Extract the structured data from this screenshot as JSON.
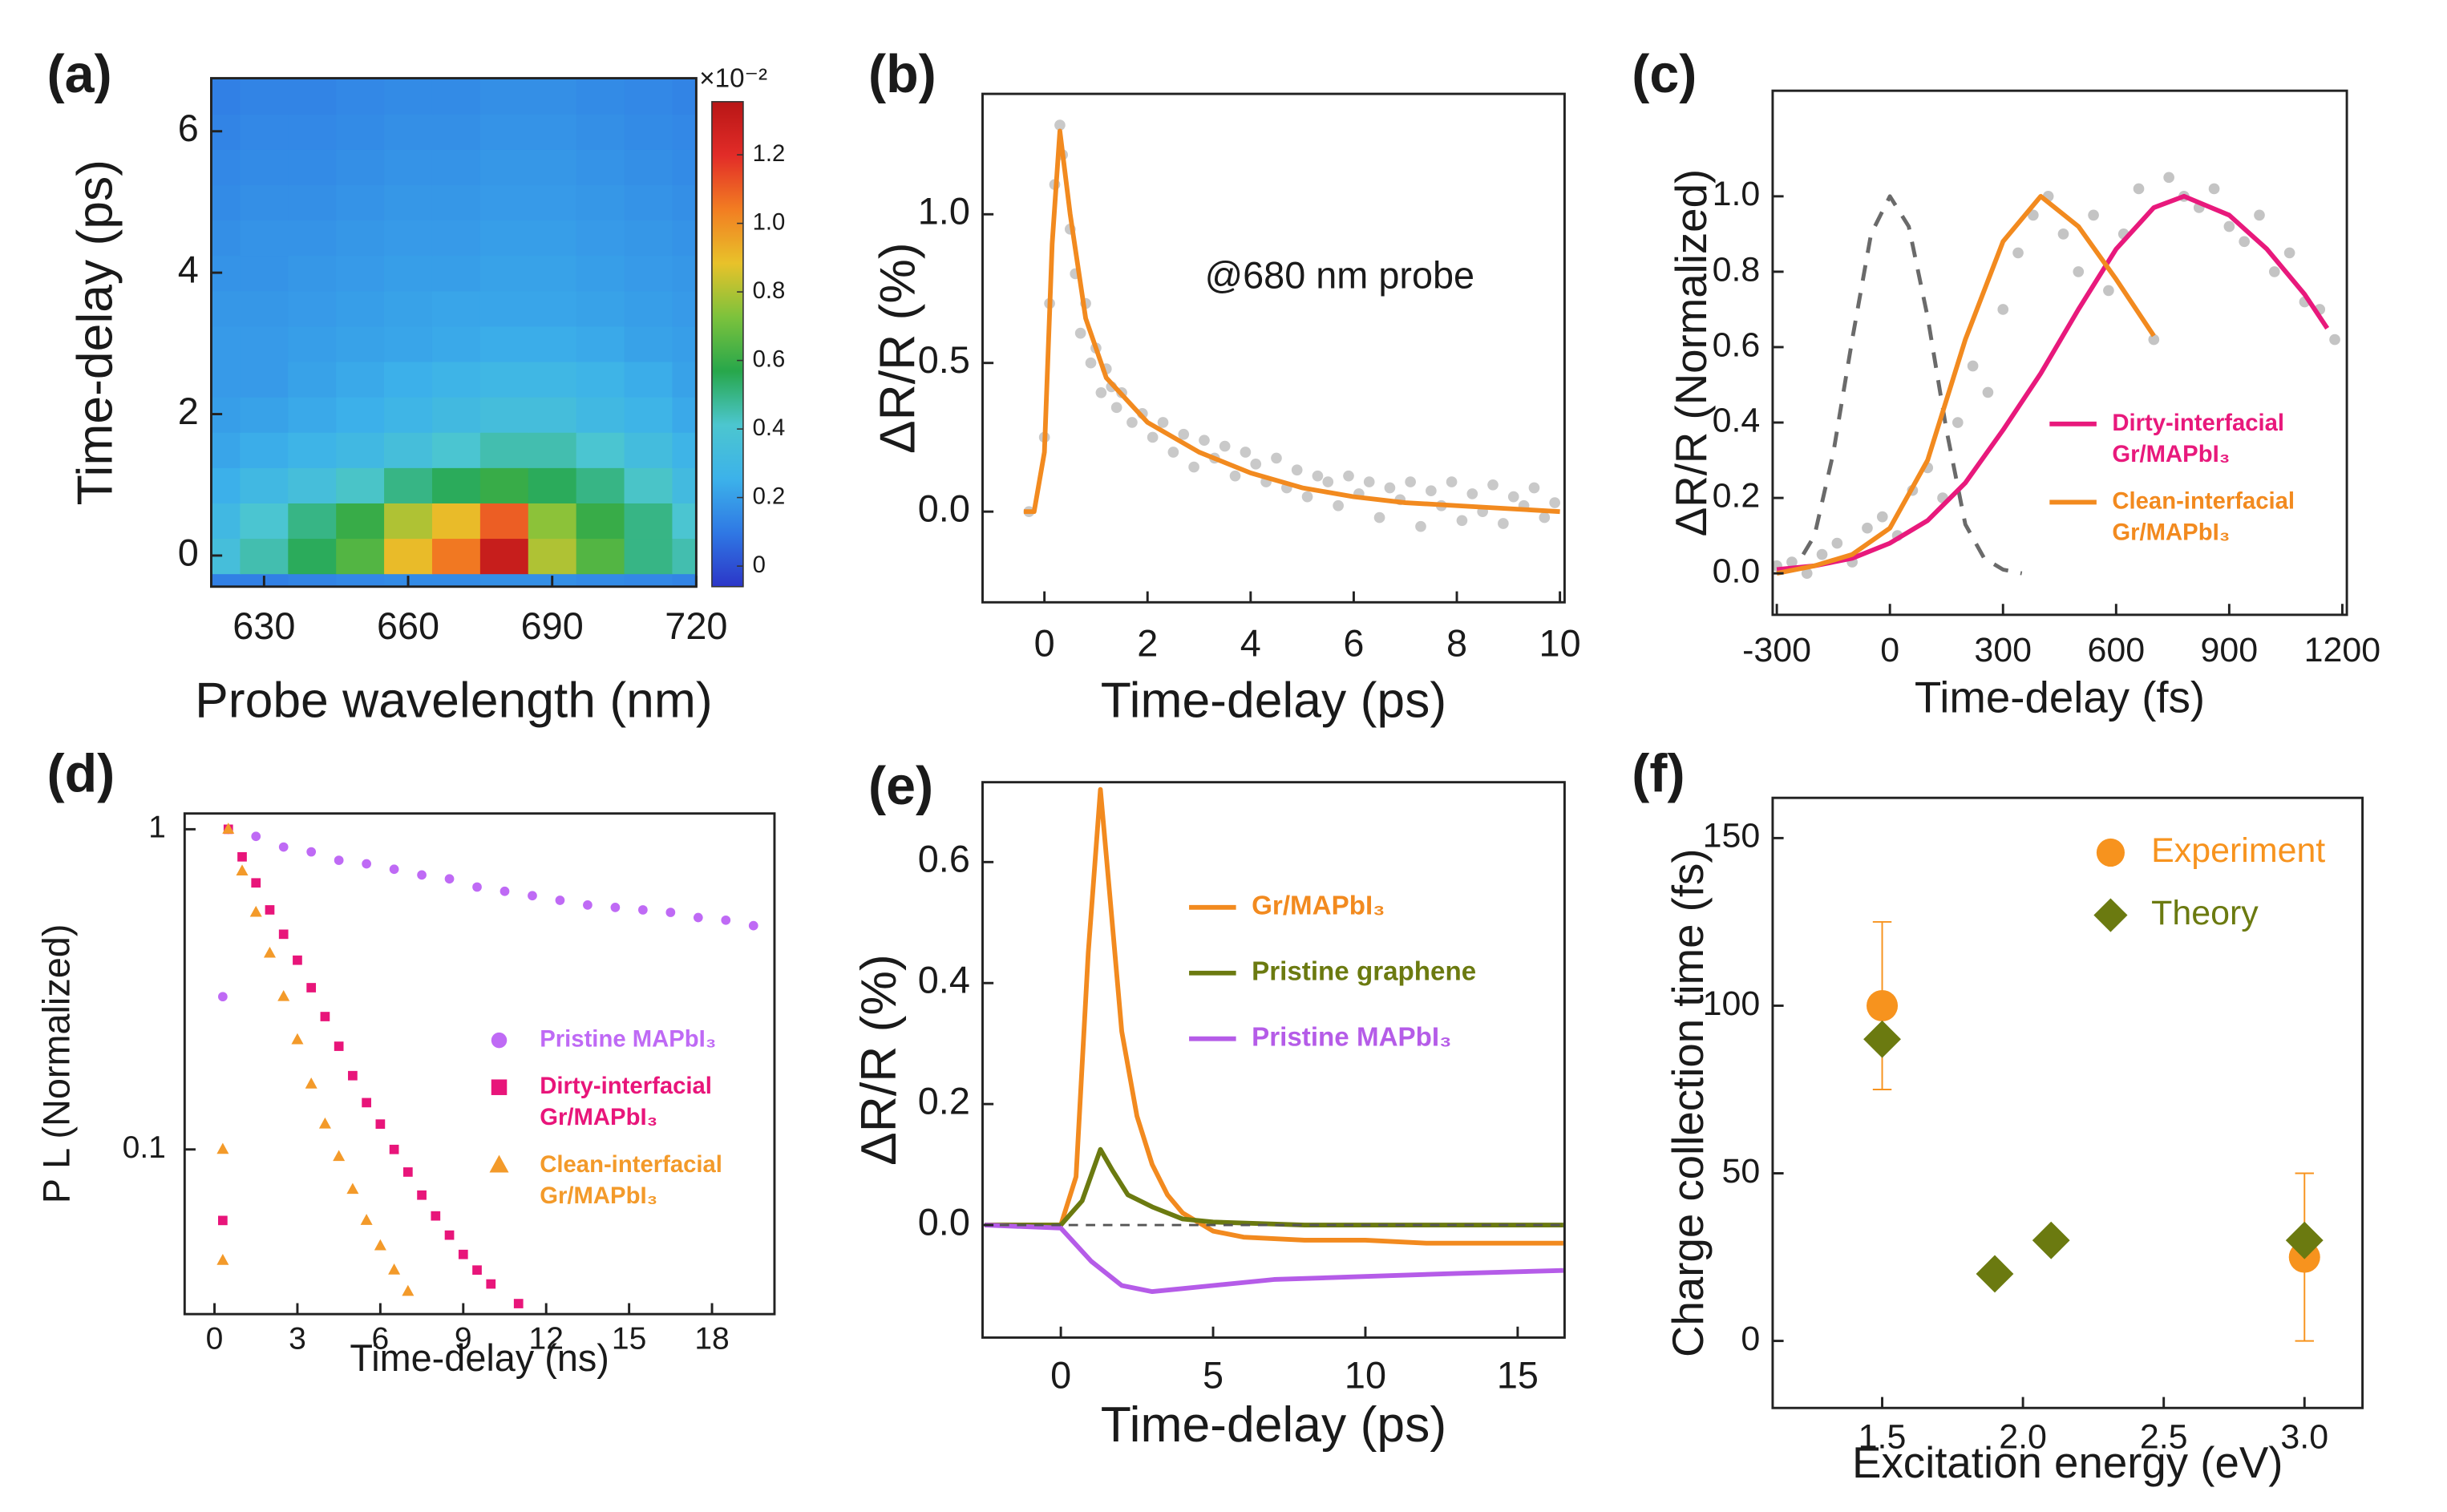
{
  "chart_data": [
    {
      "type": "heatmap",
      "label": "(a)",
      "xlabel": "Probe wavelength (nm)",
      "ylabel": "Time-delay (ps)",
      "xlim": [
        619,
        720
      ],
      "ylim": [
        -0.44,
        6.75
      ],
      "xticks": [
        630,
        660,
        690,
        720
      ],
      "yticks": [
        0,
        2,
        4,
        6
      ],
      "x": [
        620,
        630,
        640,
        650,
        660,
        670,
        680,
        690,
        700,
        710,
        720
      ],
      "y": [
        -0.5,
        0,
        0.5,
        1,
        1.5,
        2,
        2.5,
        3,
        3.5,
        4,
        4.5,
        5,
        5.5,
        6,
        6.5
      ],
      "z": [
        [
          0.12,
          0.12,
          0.13,
          0.14,
          0.15,
          0.15,
          0.16,
          0.16,
          0.15,
          0.14,
          0.13
        ],
        [
          0.35,
          0.45,
          0.55,
          0.65,
          0.9,
          1.05,
          1.3,
          0.8,
          0.65,
          0.5,
          0.45
        ],
        [
          0.3,
          0.4,
          0.5,
          0.6,
          0.8,
          0.9,
          1.1,
          0.75,
          0.6,
          0.5,
          0.4
        ],
        [
          0.25,
          0.3,
          0.35,
          0.42,
          0.5,
          0.55,
          0.6,
          0.55,
          0.5,
          0.42,
          0.32
        ],
        [
          0.22,
          0.24,
          0.27,
          0.3,
          0.35,
          0.4,
          0.45,
          0.45,
          0.4,
          0.33,
          0.27
        ],
        [
          0.2,
          0.21,
          0.23,
          0.25,
          0.28,
          0.31,
          0.34,
          0.34,
          0.3,
          0.27,
          0.23
        ],
        [
          0.19,
          0.19,
          0.21,
          0.23,
          0.25,
          0.27,
          0.29,
          0.29,
          0.27,
          0.24,
          0.21
        ],
        [
          0.19,
          0.19,
          0.2,
          0.21,
          0.22,
          0.23,
          0.24,
          0.24,
          0.23,
          0.21,
          0.2
        ],
        [
          0.18,
          0.18,
          0.19,
          0.2,
          0.21,
          0.22,
          0.22,
          0.22,
          0.21,
          0.2,
          0.19
        ],
        [
          0.17,
          0.17,
          0.18,
          0.19,
          0.2,
          0.2,
          0.21,
          0.21,
          0.2,
          0.19,
          0.18
        ],
        [
          0.16,
          0.17,
          0.17,
          0.18,
          0.19,
          0.19,
          0.2,
          0.2,
          0.19,
          0.18,
          0.17
        ],
        [
          0.15,
          0.16,
          0.16,
          0.17,
          0.18,
          0.18,
          0.19,
          0.19,
          0.18,
          0.17,
          0.16
        ],
        [
          0.14,
          0.15,
          0.15,
          0.16,
          0.17,
          0.17,
          0.18,
          0.18,
          0.17,
          0.16,
          0.15
        ],
        [
          0.13,
          0.14,
          0.14,
          0.15,
          0.16,
          0.16,
          0.17,
          0.17,
          0.16,
          0.15,
          0.14
        ],
        [
          0.12,
          0.13,
          0.13,
          0.14,
          0.15,
          0.15,
          0.16,
          0.16,
          0.15,
          0.14,
          0.13
        ]
      ],
      "colormap": [
        "#2c36c8",
        "#2f78e4",
        "#3cb2ea",
        "#4cc6cf",
        "#27a74b",
        "#7cc23c",
        "#e8c22a",
        "#f27d22",
        "#e22c28",
        "#b81616"
      ],
      "clim": [
        -0.06,
        1.355
      ],
      "cticks": [
        0,
        0.2,
        0.4,
        0.6,
        0.8,
        {
          "value": 1,
          "label": "1.0"
        },
        1.2
      ],
      "colorbar_label": "×10⁻²"
    },
    {
      "type": "line",
      "label": "(b)",
      "xlabel": "Time-delay (ps)",
      "ylabel": "ΔR/R (%)",
      "annotation": "@680 nm probe",
      "xlim": [
        -1.2,
        10.09
      ],
      "ylim": [
        -0.305,
        1.405
      ],
      "xticks": [
        0,
        2,
        4,
        6,
        8,
        10
      ],
      "yticks": [
        {
          "value": 0,
          "label": "0.0"
        },
        0.5,
        {
          "value": 1,
          "label": "1.0"
        }
      ],
      "series": [
        {
          "style": "points",
          "color": "#c9c9c9",
          "x": [
            -0.3,
            0.0,
            0.1,
            0.2,
            0.3,
            0.35,
            0.5,
            0.6,
            0.7,
            0.8,
            0.9,
            1.0,
            1.1,
            1.2,
            1.3,
            1.4,
            1.5,
            1.7,
            1.9,
            2.1,
            2.3,
            2.5,
            2.7,
            2.9,
            3.1,
            3.3,
            3.5,
            3.7,
            3.9,
            4.1,
            4.3,
            4.5,
            4.7,
            4.9,
            5.1,
            5.3,
            5.5,
            5.7,
            5.9,
            6.1,
            6.3,
            6.5,
            6.7,
            6.9,
            7.1,
            7.3,
            7.5,
            7.7,
            7.9,
            8.1,
            8.3,
            8.5,
            8.7,
            8.9,
            9.1,
            9.3,
            9.5,
            9.7,
            9.9
          ],
          "values": [
            0.0,
            0.25,
            0.7,
            1.1,
            1.3,
            1.2,
            0.95,
            0.8,
            0.6,
            0.7,
            0.5,
            0.55,
            0.4,
            0.48,
            0.42,
            0.35,
            0.4,
            0.3,
            0.33,
            0.25,
            0.3,
            0.2,
            0.26,
            0.15,
            0.24,
            0.18,
            0.22,
            0.12,
            0.2,
            0.16,
            0.1,
            0.18,
            0.08,
            0.14,
            0.05,
            0.12,
            0.1,
            0.02,
            0.12,
            0.06,
            0.1,
            -0.02,
            0.08,
            0.04,
            0.1,
            -0.05,
            0.07,
            0.02,
            0.1,
            -0.03,
            0.06,
            0.0,
            0.09,
            -0.04,
            0.05,
            0.02,
            0.08,
            -0.02,
            0.03
          ]
        },
        {
          "style": "line",
          "color": "#f28a1f",
          "x": [
            -0.4,
            -0.2,
            0,
            0.15,
            0.3,
            0.5,
            0.8,
            1.2,
            2,
            3,
            4,
            5,
            6,
            7,
            8,
            10
          ],
          "values": [
            0,
            0,
            0.2,
            0.9,
            1.28,
            1.0,
            0.65,
            0.45,
            0.3,
            0.2,
            0.13,
            0.08,
            0.05,
            0.03,
            0.02,
            0.0
          ]
        }
      ]
    },
    {
      "type": "line",
      "label": "(c)",
      "xlabel": "Time-delay (fs)",
      "ylabel": "ΔR/R (Normalized)",
      "legend": "lower right",
      "xlim": [
        -311,
        1212
      ],
      "ylim": [
        -0.11,
        1.28
      ],
      "xticks": [
        -300,
        0,
        300,
        600,
        900,
        1200
      ],
      "yticks": [
        {
          "value": 0,
          "label": "0.0"
        },
        0.2,
        0.4,
        0.6,
        0.8,
        {
          "value": 1,
          "label": "1.0"
        }
      ],
      "series": [
        {
          "style": "points",
          "color": "#c4c4c4",
          "x": [
            -300,
            -260,
            -220,
            -180,
            -140,
            -100,
            -60,
            -20,
            20,
            60,
            100,
            140,
            180,
            220,
            260,
            300,
            340,
            380,
            420,
            460,
            500,
            540,
            580,
            620,
            660,
            700,
            740,
            780,
            820,
            860,
            900,
            940,
            980,
            1020,
            1060,
            1100,
            1140,
            1180
          ],
          "values": [
            0.02,
            0.03,
            0.0,
            0.05,
            0.08,
            0.03,
            0.12,
            0.15,
            0.1,
            0.22,
            0.28,
            0.2,
            0.4,
            0.55,
            0.48,
            0.7,
            0.85,
            0.95,
            1.0,
            0.9,
            0.8,
            0.95,
            0.75,
            0.9,
            1.02,
            0.62,
            1.05,
            1.0,
            0.97,
            1.02,
            0.92,
            0.88,
            0.95,
            0.8,
            0.85,
            0.72,
            0.7,
            0.62
          ]
        },
        {
          "style": "dashed",
          "color": "#6a6a6a",
          "x": [
            -230,
            -200,
            -150,
            -100,
            -50,
            0,
            50,
            100,
            150,
            200,
            250,
            300,
            350
          ],
          "values": [
            0.05,
            0.1,
            0.32,
            0.62,
            0.9,
            1.0,
            0.92,
            0.68,
            0.38,
            0.13,
            0.04,
            0.01,
            0.0
          ]
        },
        {
          "name": "Dirty-interfacial\nGr/MAPbI₃",
          "style": "line",
          "color": "#e8197c",
          "x": [
            -300,
            -200,
            -100,
            0,
            100,
            200,
            300,
            400,
            500,
            600,
            700,
            780,
            900,
            1000,
            1100,
            1160
          ],
          "values": [
            0.01,
            0.02,
            0.04,
            0.08,
            0.14,
            0.24,
            0.38,
            0.53,
            0.7,
            0.86,
            0.97,
            1.0,
            0.95,
            0.86,
            0.74,
            0.65
          ]
        },
        {
          "name": "Clean-interfacial\nGr/MAPbI₃",
          "style": "line",
          "color": "#f28a1f",
          "x": [
            -300,
            -200,
            -100,
            0,
            100,
            200,
            300,
            400,
            500,
            600,
            700
          ],
          "values": [
            0,
            0.02,
            0.05,
            0.12,
            0.3,
            0.62,
            0.88,
            1.0,
            0.92,
            0.78,
            0.63
          ]
        }
      ]
    },
    {
      "type": "scatter",
      "label": "(d)",
      "xlabel": "Time-delay (ns)",
      "ylabel": "P L (Normalized)",
      "yscale": "log",
      "legend": "lower right",
      "xlim": [
        -1.08,
        20.26
      ],
      "ylim": [
        0.0306,
        1.12
      ],
      "xticks": [
        0,
        3,
        6,
        9,
        12,
        15,
        18
      ],
      "yticks": [
        1,
        0.1
      ],
      "series": [
        {
          "name": "Pristine MAPbI₃",
          "marker": "circle",
          "size": 3,
          "color": "#bf6af5",
          "x": [
            0.3,
            0.5,
            1.5,
            2.5,
            3.5,
            4.5,
            5.5,
            6.5,
            7.5,
            8.5,
            9.5,
            10.5,
            11.5,
            12.5,
            13.5,
            14.5,
            15.5,
            16.5,
            17.5,
            18.5,
            19.5
          ],
          "values": [
            0.3,
            1.0,
            0.95,
            0.88,
            0.85,
            0.8,
            0.78,
            0.75,
            0.72,
            0.7,
            0.66,
            0.64,
            0.62,
            0.6,
            0.58,
            0.57,
            0.56,
            0.55,
            0.53,
            0.52,
            0.5
          ]
        },
        {
          "name": "Dirty-interfacial\nGr/MAPbI₃",
          "marker": "square",
          "size": 3,
          "color": "#e8157a",
          "x": [
            0.3,
            0.5,
            1,
            1.5,
            2,
            2.5,
            3,
            3.5,
            4,
            4.5,
            5,
            5.5,
            6,
            6.5,
            7,
            7.5,
            8,
            8.5,
            9,
            9.5,
            10,
            11
          ],
          "values": [
            0.06,
            1,
            0.82,
            0.68,
            0.56,
            0.47,
            0.39,
            0.32,
            0.26,
            0.21,
            0.17,
            0.14,
            0.12,
            0.1,
            0.085,
            0.072,
            0.062,
            0.054,
            0.047,
            0.042,
            0.038,
            0.033
          ]
        },
        {
          "name": "Clean-interfacial\nGr/MAPbI₃",
          "marker": "triangle",
          "size": 3.5,
          "color": "#f39a2a",
          "x": [
            0.3,
            0.3,
            0.5,
            1,
            1.5,
            2,
            2.5,
            3,
            3.5,
            4,
            4.5,
            5,
            5.5,
            6,
            6.5,
            7
          ],
          "values": [
            0.1,
            0.045,
            1,
            0.74,
            0.55,
            0.41,
            0.3,
            0.22,
            0.16,
            0.12,
            0.095,
            0.075,
            0.06,
            0.05,
            0.042,
            0.036
          ]
        }
      ]
    },
    {
      "type": "line",
      "label": "(e)",
      "xlabel": "Time-delay (ps)",
      "ylabel": "ΔR/R (%)",
      "legend": "upper right",
      "zero_line": true,
      "xlim": [
        -2.57,
        16.54
      ],
      "ylim": [
        -0.186,
        0.732
      ],
      "xticks": [
        0,
        5,
        10,
        15
      ],
      "yticks": [
        {
          "value": 0,
          "label": "0.0"
        },
        0.2,
        0.4,
        0.6
      ],
      "series": [
        {
          "name": "Gr/MAPbI₃",
          "style": "line",
          "color": "#f28a1f",
          "x": [
            -2.5,
            0,
            0.5,
            0.9,
            1.3,
            1.6,
            2,
            2.5,
            3,
            3.5,
            4,
            5,
            6,
            8,
            10,
            12,
            14,
            16.5
          ],
          "values": [
            0,
            0,
            0.08,
            0.45,
            0.72,
            0.55,
            0.32,
            0.18,
            0.1,
            0.05,
            0.02,
            -0.01,
            -0.02,
            -0.025,
            -0.025,
            -0.03,
            -0.03,
            -0.03
          ]
        },
        {
          "name": "Pristine graphene",
          "style": "line",
          "color": "#6b7a10",
          "x": [
            -2.5,
            0,
            0.7,
            1.3,
            1.7,
            2.2,
            3,
            4,
            5,
            8,
            12,
            16.5
          ],
          "values": [
            0,
            0,
            0.04,
            0.125,
            0.09,
            0.05,
            0.03,
            0.01,
            0.005,
            0,
            0,
            0
          ]
        },
        {
          "name": "Pristine MAPbI₃",
          "style": "line",
          "color": "#b55ce8",
          "x": [
            -2.5,
            0,
            1,
            2,
            3,
            4,
            5,
            7,
            10,
            13,
            16.5
          ],
          "values": [
            0,
            -0.005,
            -0.06,
            -0.1,
            -0.11,
            -0.105,
            -0.1,
            -0.09,
            -0.085,
            -0.08,
            -0.075
          ]
        }
      ]
    },
    {
      "type": "scatter",
      "label": "(f)",
      "xlabel": "Excitation energy (eV)",
      "ylabel": "Charge collection time (fs)",
      "legend": "upper right",
      "xlim": [
        1.111,
        3.206
      ],
      "ylim": [
        -20,
        162
      ],
      "xticks": [
        1.5,
        {
          "value": 2,
          "label": "2.0"
        },
        2.5,
        {
          "value": 3,
          "label": "3.0"
        }
      ],
      "yticks": [
        0,
        50,
        100,
        150
      ],
      "series": [
        {
          "name": "Experiment",
          "marker": "circle",
          "size": 10,
          "color": "#f7931e",
          "x": [
            1.5,
            3.0
          ],
          "values": [
            100,
            25
          ],
          "errors": [
            25,
            25
          ]
        },
        {
          "name": "Theory",
          "marker": "diamond",
          "size": 12,
          "color": "#6b7a10",
          "x": [
            1.5,
            1.9,
            2.1,
            3.0
          ],
          "values": [
            90,
            20,
            30,
            30
          ]
        }
      ]
    }
  ]
}
